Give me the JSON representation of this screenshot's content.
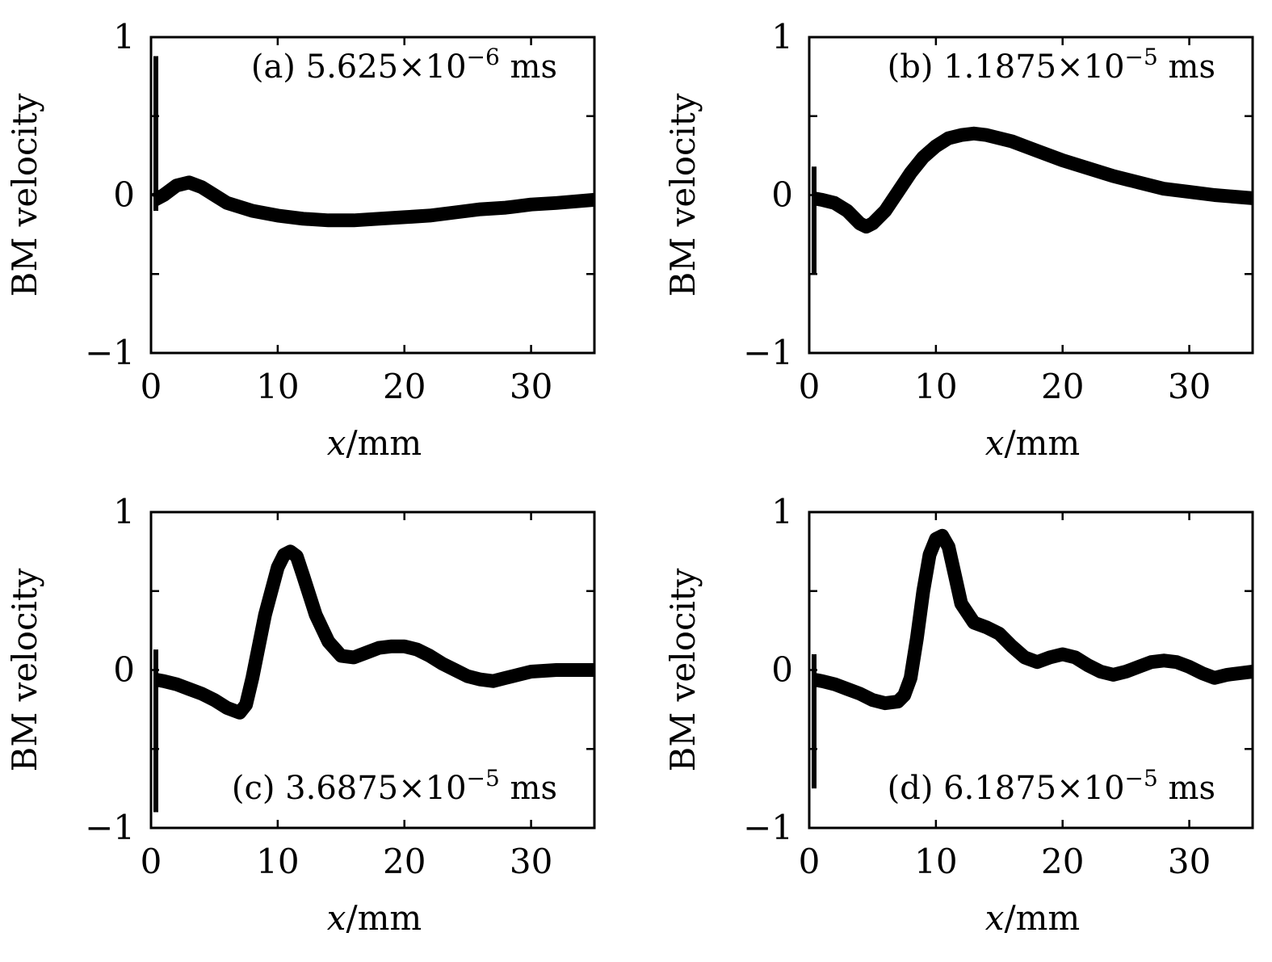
{
  "chart_data": [
    {
      "type": "line",
      "panel": "(a)",
      "time_mantissa": "5.625",
      "time_exponent": "−6",
      "time_unit": "ms",
      "xlabel_var": "x",
      "xlabel_unit": "/mm",
      "ylabel": "BM velocity",
      "xlim": [
        0,
        35
      ],
      "ylim": [
        -1,
        1
      ],
      "xticks": [
        0,
        10,
        20,
        30
      ],
      "yticks": [
        -1,
        -0.5,
        0,
        0.5,
        1
      ],
      "ytick_labels": [
        "−1",
        "",
        "0",
        "",
        "1"
      ],
      "spike": [
        -0.1,
        0.88
      ],
      "x": [
        0.3,
        1,
        2,
        3,
        4,
        5,
        6,
        8,
        10,
        12,
        14,
        16,
        18,
        20,
        22,
        24,
        26,
        28,
        30,
        32,
        35
      ],
      "y": [
        -0.03,
        0.0,
        0.06,
        0.08,
        0.05,
        0.0,
        -0.05,
        -0.1,
        -0.13,
        -0.15,
        -0.16,
        -0.16,
        -0.15,
        -0.14,
        -0.13,
        -0.11,
        -0.09,
        -0.08,
        -0.06,
        -0.05,
        -0.03
      ]
    },
    {
      "type": "line",
      "panel": "(b)",
      "time_mantissa": "1.1875",
      "time_exponent": "−5",
      "time_unit": "ms",
      "xlabel_var": "x",
      "xlabel_unit": "/mm",
      "ylabel": "BM velocity",
      "xlim": [
        0,
        35
      ],
      "ylim": [
        -1,
        1
      ],
      "xticks": [
        0,
        10,
        20,
        30
      ],
      "yticks": [
        -1,
        -0.5,
        0,
        0.5,
        1
      ],
      "ytick_labels": [
        "−1",
        "",
        "0",
        "",
        "1"
      ],
      "spike": [
        -0.5,
        0.18
      ],
      "x": [
        0.3,
        1,
        2,
        3,
        4,
        4.5,
        5,
        6,
        7,
        8,
        9,
        10,
        11,
        12,
        13,
        14,
        16,
        18,
        20,
        22,
        24,
        26,
        28,
        30,
        32,
        35
      ],
      "y": [
        -0.02,
        -0.03,
        -0.05,
        -0.1,
        -0.18,
        -0.2,
        -0.18,
        -0.1,
        0.02,
        0.14,
        0.24,
        0.31,
        0.36,
        0.38,
        0.39,
        0.38,
        0.34,
        0.28,
        0.22,
        0.17,
        0.12,
        0.08,
        0.04,
        0.02,
        0.0,
        -0.02
      ]
    },
    {
      "type": "line",
      "panel": "(c)",
      "time_mantissa": "3.6875",
      "time_exponent": "−5",
      "time_unit": "ms",
      "xlabel_var": "x",
      "xlabel_unit": "/mm",
      "ylabel": "BM velocity",
      "xlim": [
        0,
        35
      ],
      "ylim": [
        -1,
        1
      ],
      "xticks": [
        0,
        10,
        20,
        30
      ],
      "yticks": [
        -1,
        -0.5,
        0,
        0.5,
        1
      ],
      "ytick_labels": [
        "−1",
        "",
        "0",
        "",
        "1"
      ],
      "spike": [
        -0.9,
        0.13
      ],
      "x": [
        0.3,
        1,
        2,
        3,
        4,
        5,
        6,
        7,
        7.5,
        8,
        9,
        10,
        10.5,
        11,
        11.5,
        12,
        13,
        14,
        15,
        16,
        17,
        18,
        19,
        20,
        21,
        22,
        23,
        24,
        25,
        26,
        27,
        28,
        29,
        30,
        32,
        35
      ],
      "y": [
        -0.06,
        -0.07,
        -0.09,
        -0.12,
        -0.15,
        -0.19,
        -0.24,
        -0.27,
        -0.22,
        -0.05,
        0.35,
        0.65,
        0.73,
        0.75,
        0.72,
        0.6,
        0.35,
        0.18,
        0.09,
        0.08,
        0.11,
        0.14,
        0.15,
        0.15,
        0.13,
        0.09,
        0.04,
        0.0,
        -0.04,
        -0.06,
        -0.07,
        -0.05,
        -0.03,
        -0.01,
        0.0,
        0.0
      ]
    },
    {
      "type": "line",
      "panel": "(d)",
      "time_mantissa": "6.1875",
      "time_exponent": "−5",
      "time_unit": "ms",
      "xlabel_var": "x",
      "xlabel_unit": "/mm",
      "ylabel": "BM velocity",
      "xlim": [
        0,
        35
      ],
      "ylim": [
        -1,
        1
      ],
      "xticks": [
        0,
        10,
        20,
        30
      ],
      "yticks": [
        -1,
        -0.5,
        0,
        0.5,
        1
      ],
      "ytick_labels": [
        "−1",
        "",
        "0",
        "",
        "1"
      ],
      "spike": [
        -0.75,
        0.1
      ],
      "x": [
        0.3,
        1,
        2,
        3,
        4,
        5,
        6,
        7,
        7.5,
        8,
        8.5,
        9,
        9.5,
        10,
        10.5,
        11,
        11.5,
        12,
        13,
        14,
        15,
        16,
        17,
        18,
        19,
        20,
        21,
        22,
        23,
        24,
        25,
        26,
        27,
        28,
        29,
        30,
        31,
        32,
        33,
        34,
        35
      ],
      "y": [
        -0.06,
        -0.07,
        -0.09,
        -0.12,
        -0.15,
        -0.19,
        -0.21,
        -0.2,
        -0.16,
        -0.05,
        0.2,
        0.5,
        0.73,
        0.83,
        0.85,
        0.78,
        0.6,
        0.42,
        0.3,
        0.27,
        0.23,
        0.15,
        0.08,
        0.05,
        0.08,
        0.1,
        0.08,
        0.03,
        -0.01,
        -0.03,
        -0.01,
        0.02,
        0.05,
        0.06,
        0.05,
        0.02,
        -0.02,
        -0.05,
        -0.03,
        -0.02,
        -0.01
      ]
    }
  ]
}
